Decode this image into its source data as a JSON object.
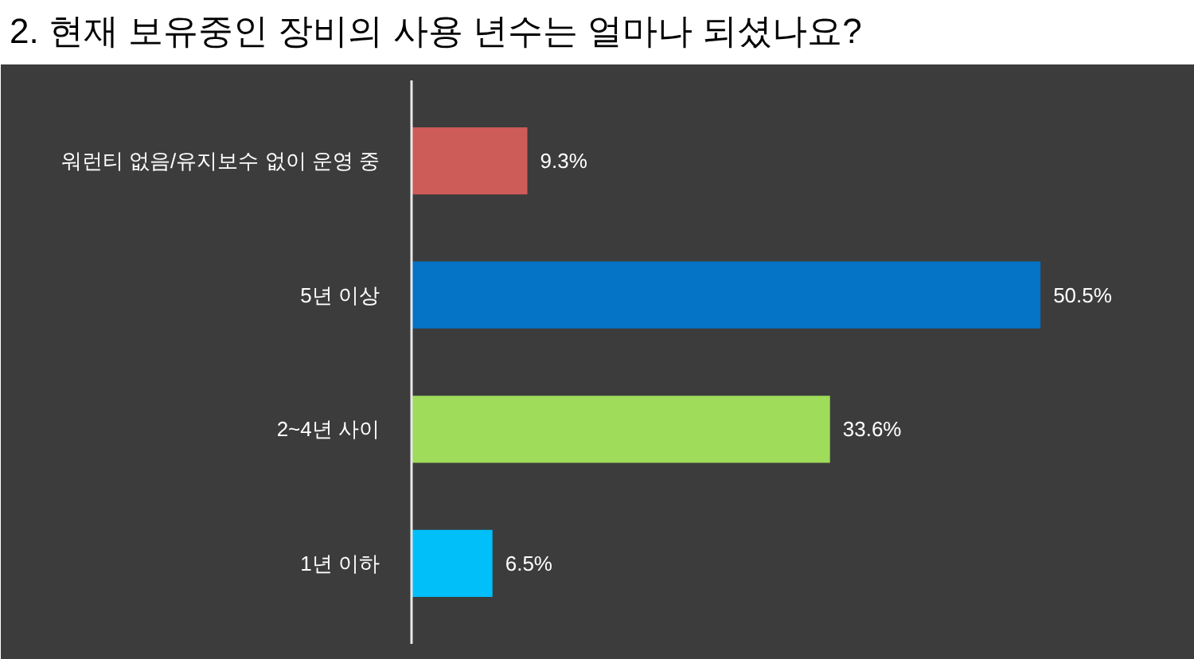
{
  "chart_data": {
    "type": "bar",
    "orientation": "horizontal",
    "title": "2. 현재 보유중인 장비의 사용 년수는 얼마나 되셨나요?",
    "categories": [
      "워런티 없음/유지보수 없이 운영 중",
      "5년 이상",
      "2~4년 사이",
      "1년 이하"
    ],
    "values": [
      9.3,
      50.5,
      33.6,
      6.5
    ],
    "colors": [
      "#cd5b58",
      "#0573c6",
      "#9edc5a",
      "#00bff9"
    ],
    "value_labels": [
      "9.3%",
      "50.5%",
      "33.6%",
      "6.5%"
    ]
  }
}
